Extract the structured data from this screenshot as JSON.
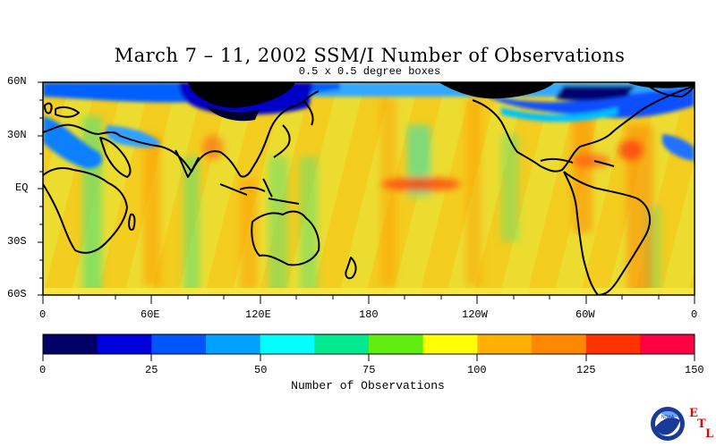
{
  "title": "March 7 – 11, 2002 SSM/I Number of Observations",
  "subtitle": "0.5 x 0.5 degree boxes",
  "lat_labels": [
    "60N",
    "30N",
    "EQ",
    "30S",
    "60S"
  ],
  "lon_labels": [
    "0",
    "60E",
    "120E",
    "180",
    "120W",
    "60W",
    "0"
  ],
  "colorbar": {
    "title": "Number of Observations",
    "tick_labels": [
      "0",
      "25",
      "50",
      "75",
      "100",
      "125",
      "150"
    ],
    "colors": [
      "#000066",
      "#0000dd",
      "#0055ff",
      "#00a0ff",
      "#00ffff",
      "#00e890",
      "#60ee10",
      "#ffff00",
      "#ffb000",
      "#ff8800",
      "#ff3300",
      "#ff0040"
    ]
  },
  "logo": {
    "agency": "NOAA",
    "lab": [
      "E",
      "T",
      "L"
    ]
  }
}
